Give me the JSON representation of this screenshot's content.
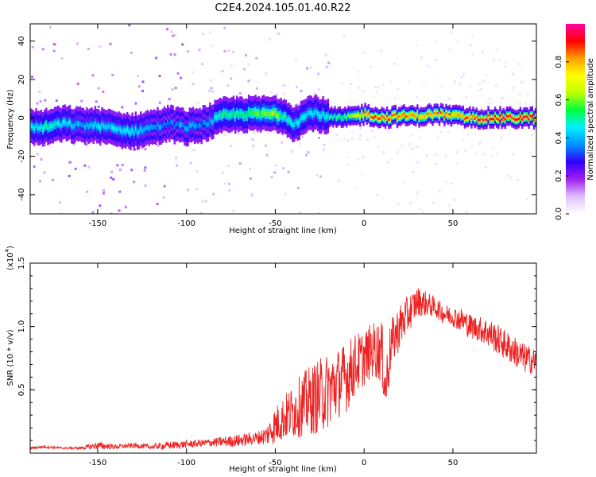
{
  "title": "C2E4.2024.105.01.40.R22",
  "chart_data": [
    {
      "type": "heatmap",
      "xlabel": "Height of straight line (km)",
      "ylabel": "Frequency (Hz)",
      "xlim": [
        -188,
        97
      ],
      "ylim": [
        -50,
        49
      ],
      "xticks": [
        -150,
        -100,
        -50,
        0,
        50
      ],
      "yticks": [
        -40,
        -20,
        0,
        20,
        40
      ],
      "colorbar": {
        "label": "Normalized spectral amplitude",
        "range": [
          0,
          1
        ],
        "ticks": [
          0.0,
          0.2,
          0.4,
          0.6,
          0.8
        ],
        "tick_labels": [
          "0.0",
          "0.2",
          "0.4",
          "0.6",
          "0.8"
        ],
        "colors": [
          "#ffffff",
          "#e0c0ff",
          "#a020f0",
          "#3000ff",
          "#0090ff",
          "#00f0ff",
          "#00ff40",
          "#c0ff00",
          "#ffff00",
          "#ffa000",
          "#ff0000",
          "#ff00a0"
        ]
      },
      "ridge": {
        "x": [
          -188,
          -180,
          -170,
          -160,
          -150,
          -140,
          -130,
          -120,
          -110,
          -100,
          -90,
          -80,
          -70,
          -60,
          -50,
          -45,
          -40,
          -35,
          -30,
          -20,
          -10,
          0,
          10,
          20,
          30,
          40,
          50,
          60,
          70,
          80,
          90,
          97
        ],
        "freq": [
          -5,
          -5,
          -3,
          -4,
          -4,
          -6,
          -7,
          -5,
          -3,
          -5,
          -3,
          1,
          2,
          2,
          2,
          1,
          -3,
          0,
          3,
          0,
          0,
          2,
          0,
          1,
          1,
          2,
          1,
          0,
          0,
          0,
          0,
          0
        ],
        "amp": [
          0.45,
          0.5,
          0.45,
          0.4,
          0.45,
          0.45,
          0.45,
          0.4,
          0.35,
          0.4,
          0.35,
          0.55,
          0.5,
          0.6,
          0.65,
          0.5,
          0.45,
          0.5,
          0.45,
          0.5,
          0.6,
          0.85,
          0.9,
          0.85,
          0.8,
          0.85,
          0.85,
          0.9,
          0.95,
          0.95,
          0.95,
          0.95
        ]
      }
    },
    {
      "type": "line",
      "xlabel": "Height of straight line (km)",
      "ylabel": "SNR (10 * v/v)",
      "yscale_label": "(x10",
      "yscale_exp": "4",
      "xlim": [
        -188,
        97
      ],
      "ylim": [
        0,
        1.5
      ],
      "xticks": [
        -150,
        -100,
        -50,
        0,
        50
      ],
      "yticks": [
        0.5,
        1.0,
        1.5
      ],
      "ytick_labels": [
        "0.5",
        "1.0",
        "1.5"
      ],
      "color": "#ee2222",
      "series": [
        {
          "x": [
            -188,
            -180,
            -170,
            -160,
            -150,
            -140,
            -130,
            -120,
            -110,
            -100,
            -90,
            -80,
            -70,
            -60,
            -55,
            -50,
            -45,
            -40,
            -35,
            -30,
            -25,
            -20,
            -15,
            -10,
            -5,
            0,
            5,
            10,
            12,
            15,
            20,
            25,
            30,
            35,
            40,
            45,
            50,
            55,
            60,
            65,
            70,
            75,
            80,
            85,
            90,
            97
          ],
          "y": [
            0.04,
            0.05,
            0.04,
            0.04,
            0.06,
            0.05,
            0.06,
            0.05,
            0.06,
            0.07,
            0.08,
            0.09,
            0.1,
            0.12,
            0.14,
            0.22,
            0.28,
            0.33,
            0.38,
            0.42,
            0.45,
            0.5,
            0.55,
            0.6,
            0.7,
            0.75,
            0.82,
            0.8,
            0.5,
            0.85,
            1.0,
            1.1,
            1.2,
            1.18,
            1.15,
            1.1,
            1.08,
            1.05,
            1.0,
            0.98,
            0.95,
            0.9,
            0.85,
            0.8,
            0.75,
            0.72
          ],
          "noise": [
            0.01,
            0.01,
            0.01,
            0.01,
            0.03,
            0.02,
            0.02,
            0.02,
            0.03,
            0.03,
            0.03,
            0.04,
            0.05,
            0.05,
            0.08,
            0.15,
            0.18,
            0.22,
            0.25,
            0.28,
            0.3,
            0.3,
            0.28,
            0.28,
            0.25,
            0.22,
            0.22,
            0.25,
            0.25,
            0.2,
            0.18,
            0.15,
            0.12,
            0.1,
            0.08,
            0.08,
            0.08,
            0.1,
            0.1,
            0.1,
            0.12,
            0.12,
            0.12,
            0.12,
            0.12,
            0.1
          ]
        }
      ]
    }
  ]
}
